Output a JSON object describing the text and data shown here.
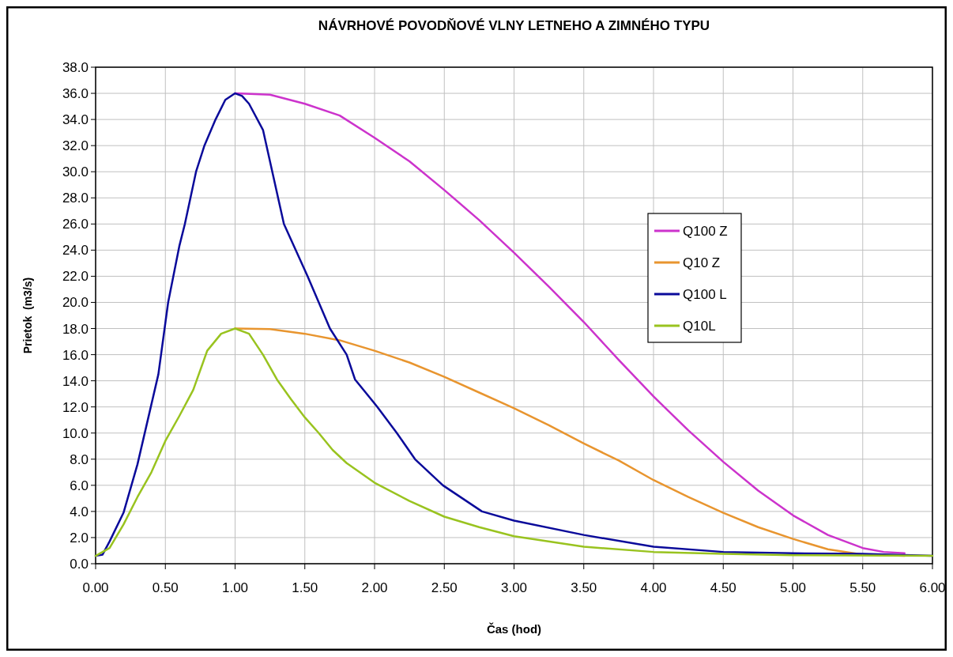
{
  "chart_data": {
    "type": "line",
    "title": "NÁVRHOVÉ POVODŇOVÉ VLNY LETNEHO A ZIMNÉHO TYPU",
    "xlabel": "Čas (hod)",
    "ylabel": "Prietok  (m3/s)",
    "xlim": [
      0,
      6
    ],
    "xticks": [
      {
        "value": 0,
        "label": "0.00"
      },
      {
        "value": 0.5,
        "label": "0.50"
      },
      {
        "value": 1,
        "label": "1.00"
      },
      {
        "value": 1.5,
        "label": "1.50"
      },
      {
        "value": 2,
        "label": "2.00"
      },
      {
        "value": 2.5,
        "label": "2.50"
      },
      {
        "value": 3,
        "label": "3.00"
      },
      {
        "value": 3.5,
        "label": "3.50"
      },
      {
        "value": 4,
        "label": "4.00"
      },
      {
        "value": 4.5,
        "label": "4.50"
      },
      {
        "value": 5,
        "label": "5.00"
      },
      {
        "value": 5.5,
        "label": "5.50"
      },
      {
        "value": 6,
        "label": "6.00"
      }
    ],
    "ylim": [
      0,
      38
    ],
    "yticks": [
      {
        "value": 0,
        "label": "0.0"
      },
      {
        "value": 2,
        "label": "2.0"
      },
      {
        "value": 4,
        "label": "4.0"
      },
      {
        "value": 6,
        "label": "6.0"
      },
      {
        "value": 8,
        "label": "8.0"
      },
      {
        "value": 10,
        "label": "10.0"
      },
      {
        "value": 12,
        "label": "12.0"
      },
      {
        "value": 14,
        "label": "14.0"
      },
      {
        "value": 16,
        "label": "16.0"
      },
      {
        "value": 18,
        "label": "18.0"
      },
      {
        "value": 20,
        "label": "20.0"
      },
      {
        "value": 22,
        "label": "22.0"
      },
      {
        "value": 24,
        "label": "24.0"
      },
      {
        "value": 26,
        "label": "26.0"
      },
      {
        "value": 28,
        "label": "28.0"
      },
      {
        "value": 30,
        "label": "30.0"
      },
      {
        "value": 32,
        "label": "32.0"
      },
      {
        "value": 34,
        "label": "34.0"
      },
      {
        "value": 36,
        "label": "36.0"
      },
      {
        "value": 38,
        "label": "38.0"
      }
    ],
    "grid": true,
    "legend": "top right",
    "marker": "none",
    "line_style": "solid",
    "series": [
      {
        "name": "Q100 Z",
        "color": "#cc33cc",
        "x": [
          1,
          1.25,
          1.5,
          1.75,
          2,
          2.25,
          2.5,
          2.75,
          3,
          3.25,
          3.5,
          3.75,
          4,
          4.25,
          4.5,
          4.75,
          5,
          5.25,
          5.5,
          5.65,
          5.8
        ],
        "values": [
          36,
          35.9,
          35.2,
          34.3,
          32.6,
          30.8,
          28.6,
          26.3,
          23.8,
          21.2,
          18.5,
          15.6,
          12.8,
          10.2,
          7.8,
          5.6,
          3.7,
          2.2,
          1.2,
          0.9,
          0.8
        ]
      },
      {
        "name": "Q10 Z",
        "color": "#e8952f",
        "x": [
          1,
          1.25,
          1.5,
          1.75,
          2,
          2.25,
          2.5,
          2.75,
          3,
          3.25,
          3.5,
          3.75,
          4,
          4.25,
          4.5,
          4.75,
          5,
          5.25,
          5.5,
          5.8
        ],
        "values": [
          18,
          17.95,
          17.6,
          17.1,
          16.3,
          15.4,
          14.3,
          13.1,
          11.9,
          10.6,
          9.2,
          7.9,
          6.4,
          5.1,
          3.9,
          2.8,
          1.9,
          1.1,
          0.7,
          0.6
        ]
      },
      {
        "name": "Q100 L",
        "color": "#0a0a9a",
        "x": [
          0,
          0.05,
          0.1,
          0.2,
          0.3,
          0.4,
          0.45,
          0.52,
          0.6,
          0.64,
          0.72,
          0.78,
          0.86,
          0.93,
          1,
          1.05,
          1.1,
          1.2,
          1.35,
          1.52,
          1.68,
          1.8,
          1.86,
          2.02,
          2.16,
          2.29,
          2.49,
          2.77,
          3,
          3.5,
          4,
          4.5,
          5,
          5.5,
          6
        ],
        "values": [
          0.6,
          0.7,
          1.7,
          3.9,
          7.6,
          12.2,
          14.5,
          20,
          24.3,
          26,
          30,
          32,
          34,
          35.5,
          36,
          35.8,
          35.2,
          33.2,
          26,
          22,
          18,
          16,
          14.1,
          12,
          10,
          8,
          6,
          4,
          3.3,
          2.2,
          1.3,
          0.9,
          0.8,
          0.75,
          0.6
        ]
      },
      {
        "name": "Q10L",
        "color": "#99c31f",
        "x": [
          0,
          0.1,
          0.2,
          0.3,
          0.4,
          0.5,
          0.6,
          0.7,
          0.8,
          0.9,
          1,
          1.1,
          1.2,
          1.3,
          1.4,
          1.5,
          1.6,
          1.7,
          1.8,
          2,
          2.25,
          2.5,
          2.75,
          3,
          3.5,
          4,
          4.5,
          5,
          6
        ],
        "values": [
          0.6,
          1.2,
          3,
          5.1,
          7,
          9.4,
          11.3,
          13.3,
          16.3,
          17.6,
          18,
          17.6,
          16,
          14.1,
          12.6,
          11.2,
          10,
          8.7,
          7.7,
          6.2,
          4.8,
          3.6,
          2.8,
          2.1,
          1.3,
          0.9,
          0.75,
          0.65,
          0.6
        ]
      }
    ]
  }
}
